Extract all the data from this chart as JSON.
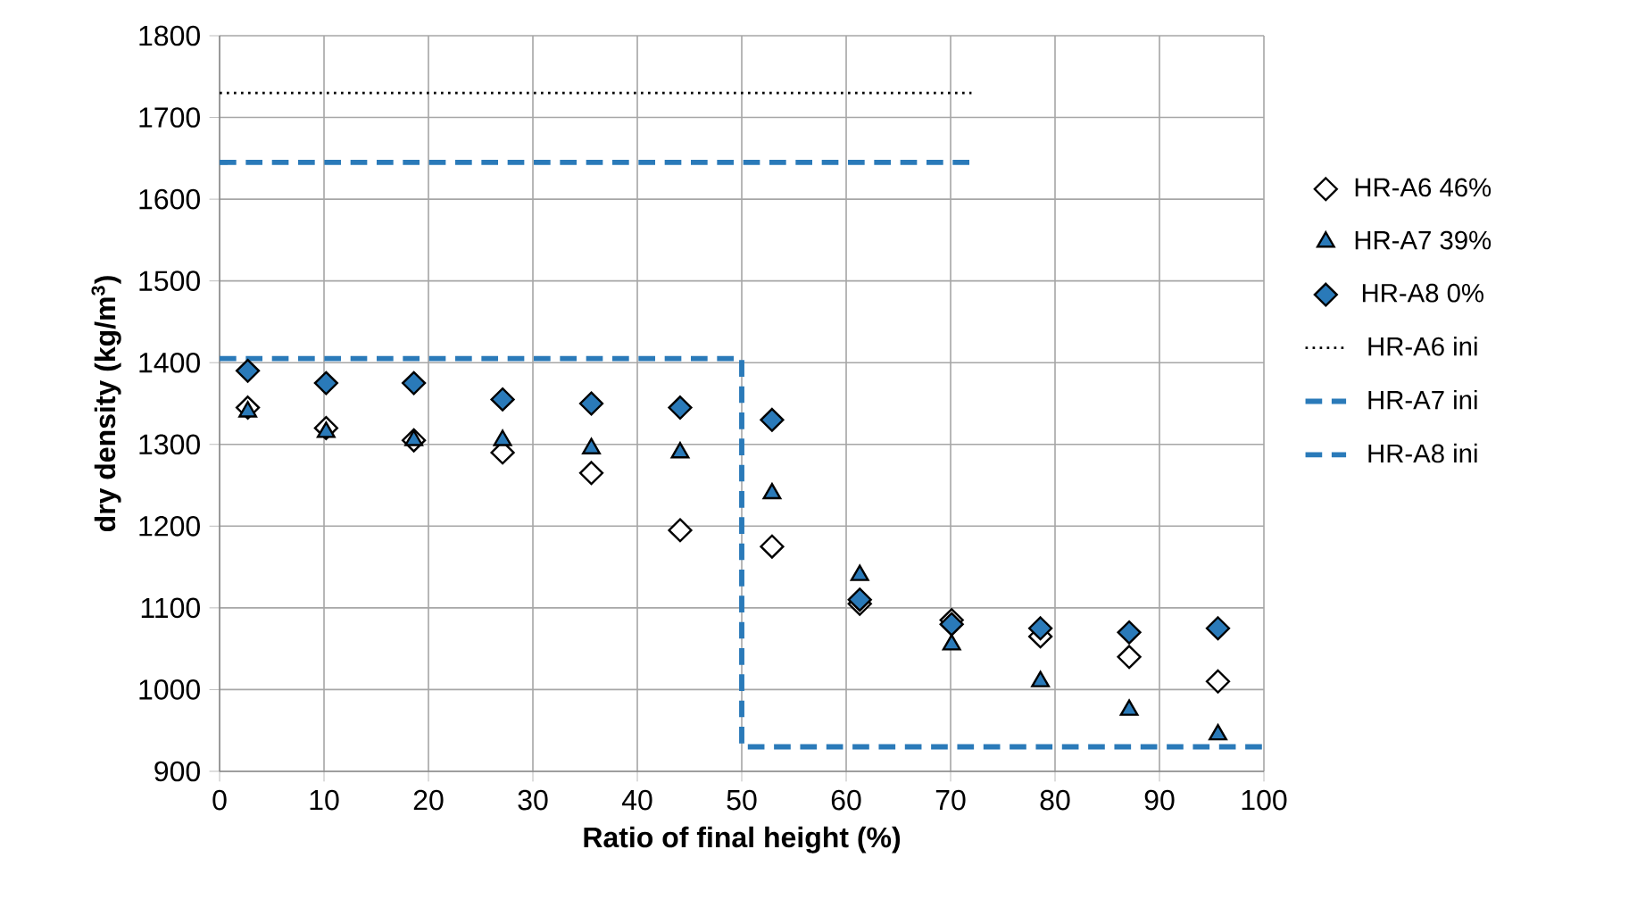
{
  "chart_data": {
    "type": "scatter",
    "xlabel": "Ratio of final height (%)",
    "ylabel": "dry density (kg/m$^{3}$)",
    "xlim": [
      0,
      100
    ],
    "xticks": [
      0,
      10,
      20,
      30,
      40,
      50,
      60,
      70,
      80,
      90,
      100
    ],
    "ylim": [
      900,
      1800
    ],
    "yticks": [
      900,
      1000,
      1100,
      1200,
      1300,
      1400,
      1500,
      1600,
      1700,
      1800
    ],
    "grid": true,
    "legend": "right",
    "series": [
      {
        "name": "HR-A6 46%",
        "marker": "diamond",
        "color": "#ffffff",
        "x": [
          2.7,
          10.2,
          18.6,
          27.1,
          35.6,
          44.1,
          52.9,
          61.3,
          70.1,
          78.6,
          87.1,
          95.6
        ],
        "values": [
          1345,
          1320,
          1305,
          1290,
          1265,
          1195,
          1175,
          1105,
          1085,
          1065,
          1040,
          1010
        ]
      },
      {
        "name": "HR-A7 39%",
        "marker": "triangle",
        "color": "#2a7ab9",
        "x": [
          2.7,
          10.2,
          18.6,
          27.1,
          35.6,
          44.1,
          52.9,
          61.3,
          70.1,
          78.6,
          87.1,
          95.6
        ],
        "values": [
          1340,
          1315,
          1305,
          1305,
          1295,
          1290,
          1240,
          1140,
          1055,
          1010,
          975,
          945
        ]
      },
      {
        "name": "HR-A8  0%",
        "marker": "diamond",
        "color": "#2a7ab9",
        "x": [
          2.7,
          10.2,
          18.6,
          27.1,
          35.6,
          44.1,
          52.9,
          61.3,
          70.1,
          78.6,
          87.1,
          95.6
        ],
        "values": [
          1390,
          1375,
          1375,
          1355,
          1350,
          1345,
          1330,
          1110,
          1080,
          1075,
          1070,
          1075
        ]
      },
      {
        "name": "HR-A6 ini",
        "type": "line",
        "line_style": "dotted",
        "color": "#000000",
        "x": [
          0,
          72
        ],
        "values": [
          1730,
          1730
        ]
      },
      {
        "name": "HR-A7 ini",
        "type": "line",
        "line_style": "dashed",
        "color": "#2a7ab9",
        "x": [
          0,
          72
        ],
        "values": [
          1645,
          1645
        ]
      },
      {
        "name": "HR-A8 ini",
        "type": "line",
        "line_style": "dashed",
        "color": "#2a7ab9",
        "x": [
          0,
          50,
          50,
          100
        ],
        "values": [
          1405,
          1405,
          930,
          930
        ]
      }
    ]
  }
}
